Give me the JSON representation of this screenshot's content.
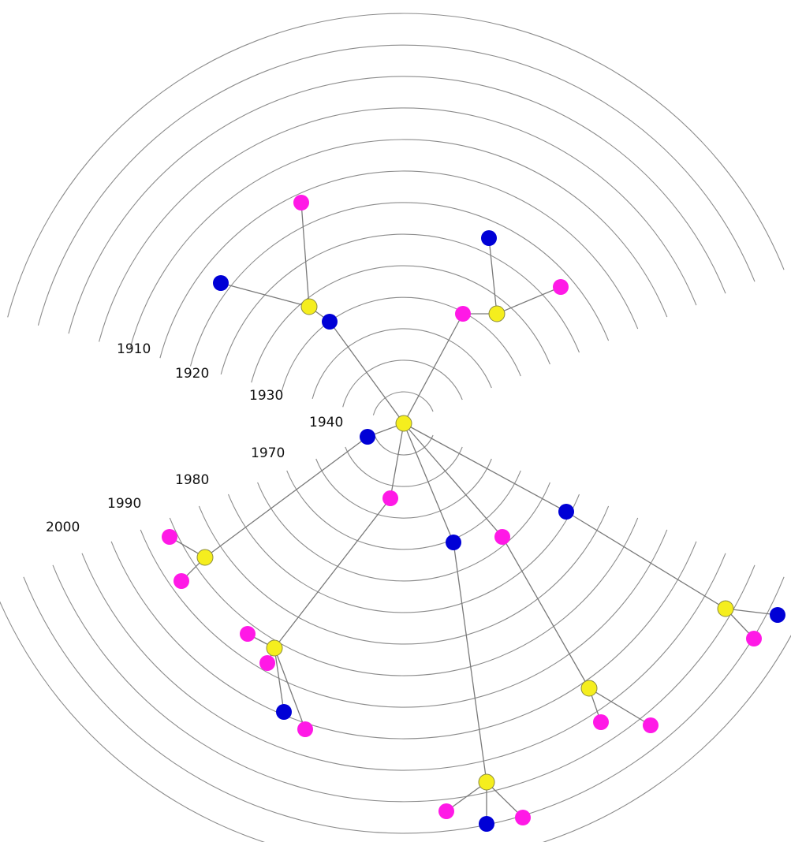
{
  "colors": {
    "couple": "#f5ee1e",
    "male": "#0000d6",
    "female": "#ff19e6",
    "ring": "#8c8c8c",
    "link": "#7a7a7a"
  },
  "upper_rings": {
    "labels": [
      "1910",
      "1920",
      "1930",
      "1940"
    ]
  },
  "lower_rings": {
    "labels": [
      "1970",
      "1980",
      "1990",
      "2000"
    ]
  }
}
